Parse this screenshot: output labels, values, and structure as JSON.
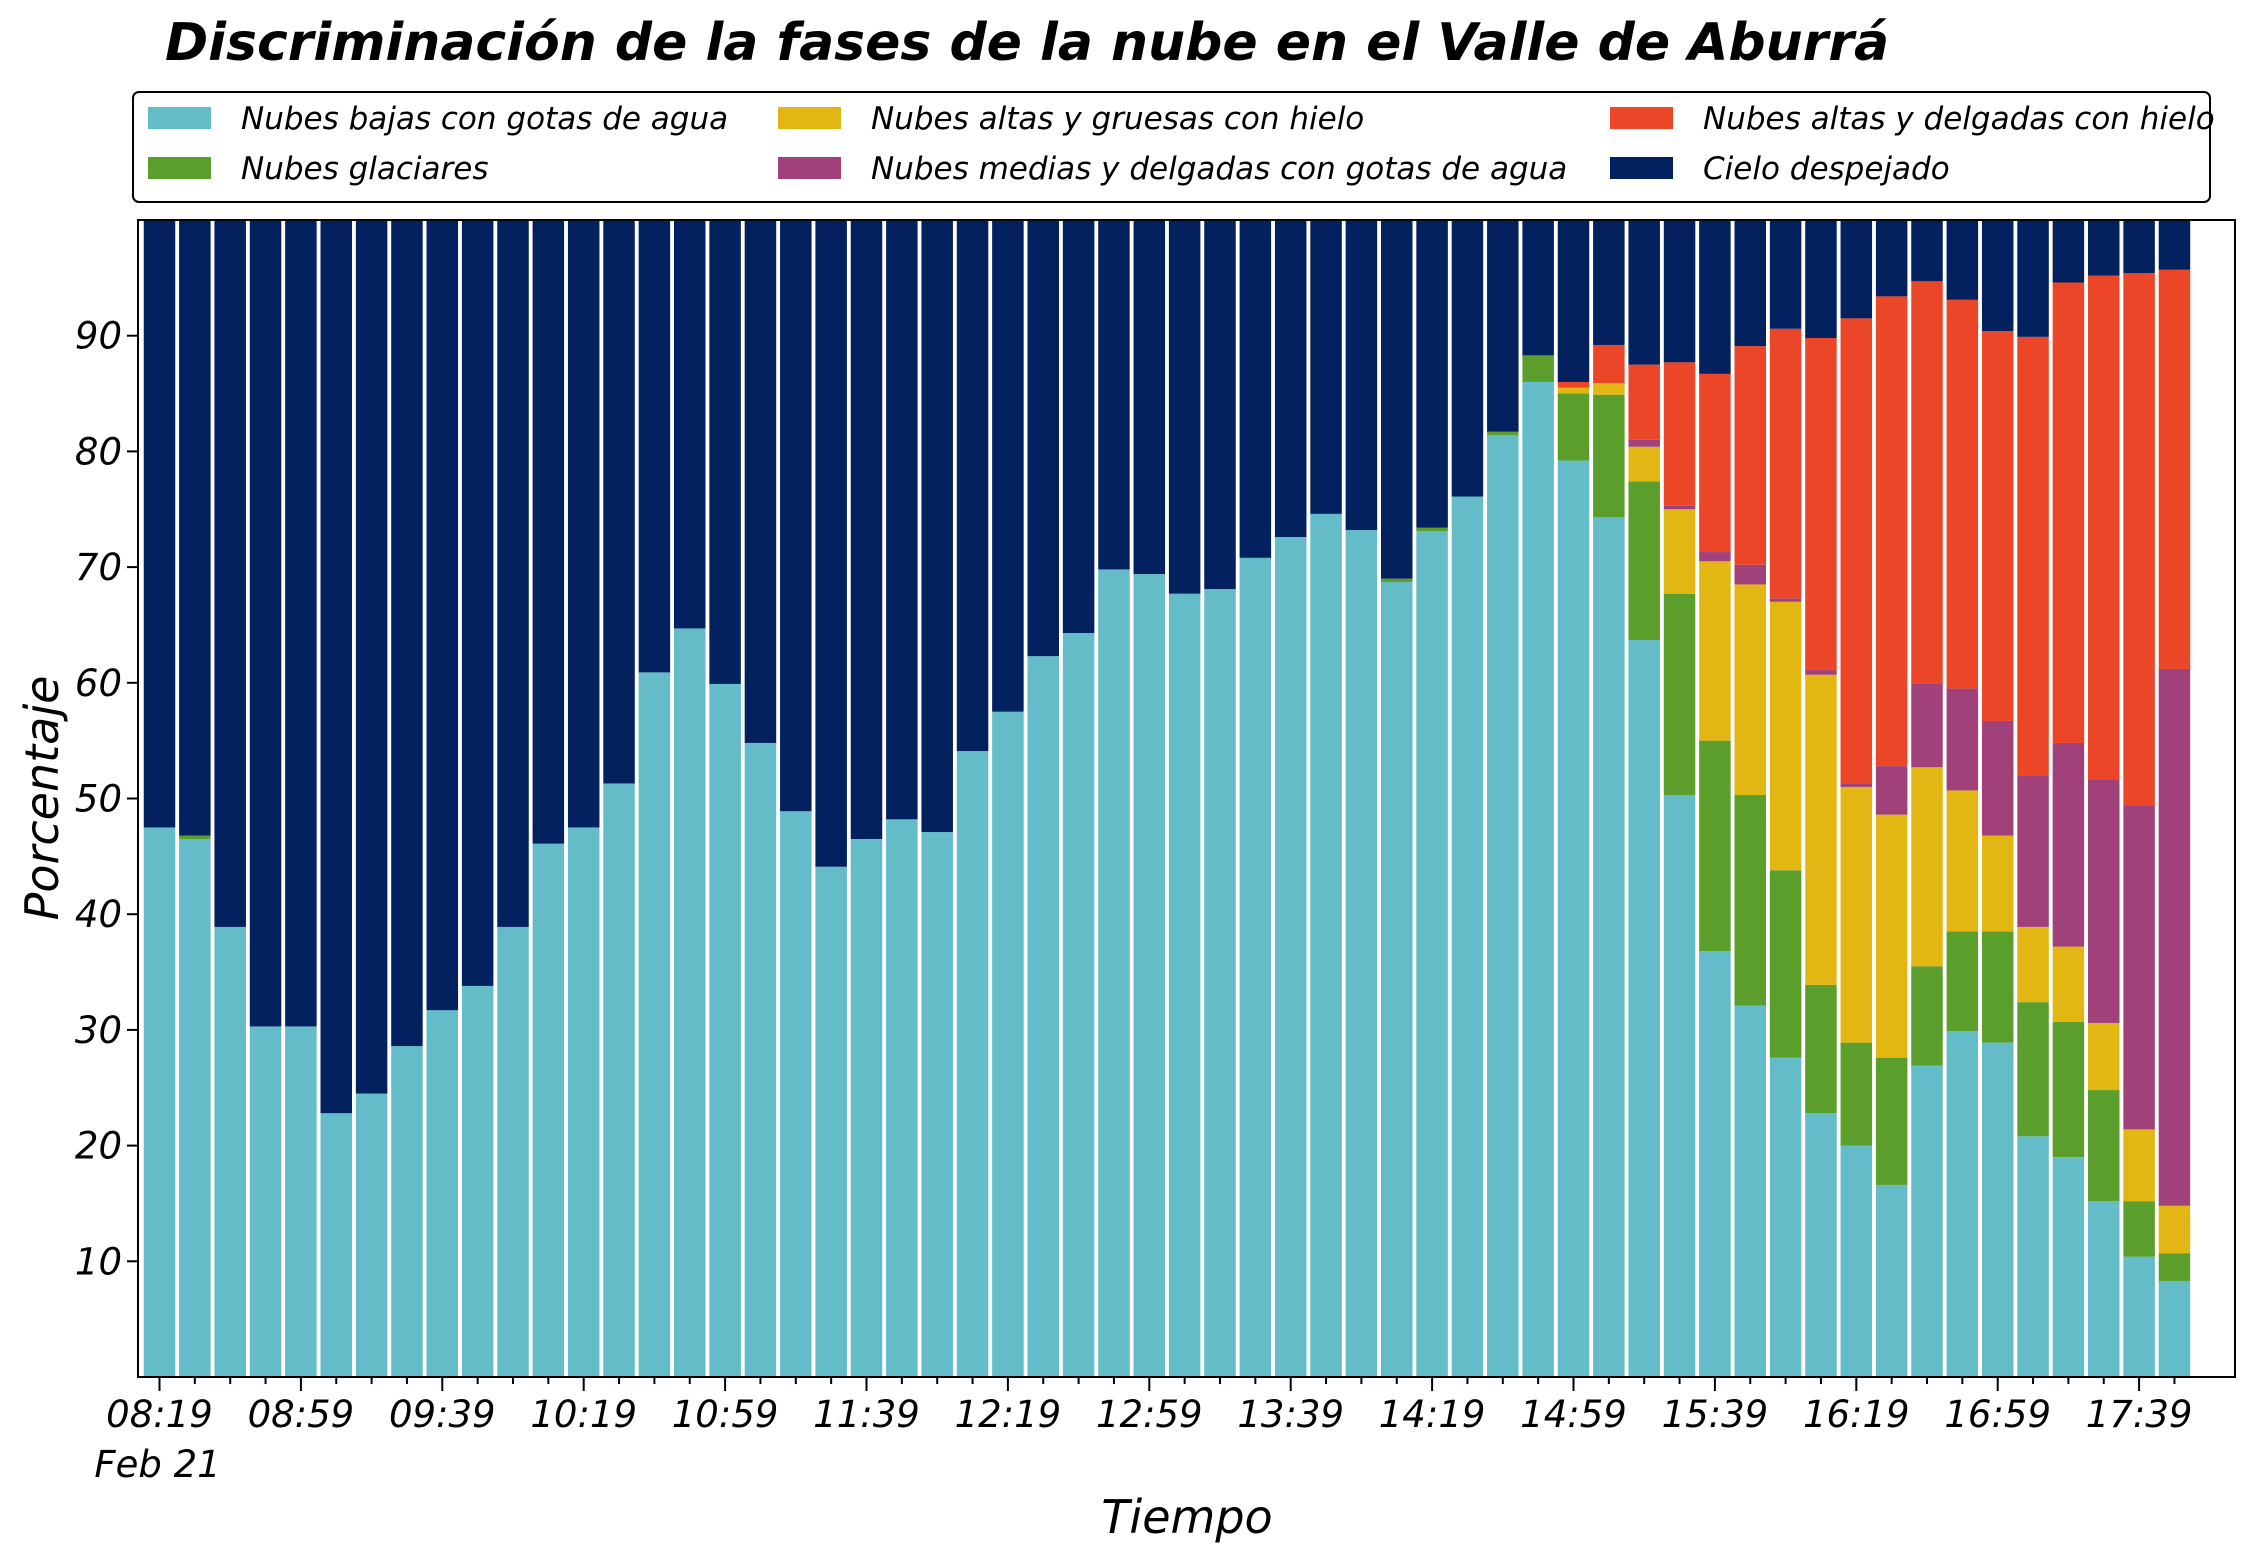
{
  "chart_data": {
    "type": "bar",
    "stacked": true,
    "title": "Discriminación de la fases de la nube en el Valle de Aburrá",
    "xlabel": "Tiempo",
    "ylabel": "Porcentaje",
    "ylim": [
      0,
      100
    ],
    "yticks": [
      10,
      20,
      30,
      40,
      50,
      60,
      70,
      80,
      90
    ],
    "xtick_labels": [
      "08:19",
      "08:59",
      "09:39",
      "10:19",
      "10:59",
      "11:39",
      "12:19",
      "12:59",
      "13:39",
      "14:19",
      "14:59",
      "15:39",
      "16:19",
      "16:59",
      "17:39"
    ],
    "xtick_date_label": "Feb 21",
    "bar_interval_minutes": 10,
    "categories": [
      "08:19",
      "08:29",
      "08:39",
      "08:49",
      "08:59",
      "09:09",
      "09:19",
      "09:29",
      "09:39",
      "09:49",
      "09:59",
      "10:09",
      "10:19",
      "10:29",
      "10:39",
      "10:49",
      "10:59",
      "11:09",
      "11:19",
      "11:29",
      "11:39",
      "11:49",
      "11:59",
      "12:09",
      "12:19",
      "12:29",
      "12:39",
      "12:49",
      "12:59",
      "13:09",
      "13:19",
      "13:29",
      "13:39",
      "13:49",
      "13:59",
      "14:09",
      "14:19",
      "14:29",
      "14:39",
      "14:49",
      "14:59",
      "15:09",
      "15:19",
      "15:29",
      "15:39",
      "15:49",
      "15:59",
      "16:09",
      "16:19",
      "16:29",
      "16:39",
      "16:49",
      "16:59",
      "17:09",
      "17:19",
      "17:29",
      "17:39",
      "17:49"
    ],
    "legend_placement": "top",
    "grid": false,
    "series": [
      {
        "name": "Nubes bajas con gotas de agua",
        "color": "#63BCC8",
        "values": [
          47.5,
          46.5,
          38.9,
          30.3,
          30.3,
          22.8,
          24.5,
          28.6,
          31.7,
          33.8,
          38.9,
          46.1,
          47.5,
          51.3,
          60.9,
          64.7,
          59.9,
          54.8,
          48.9,
          44.1,
          46.5,
          48.2,
          47.1,
          54.1,
          57.5,
          62.3,
          64.3,
          69.8,
          69.4,
          67.7,
          68.1,
          70.8,
          72.6,
          74.6,
          73.2,
          68.7,
          73.1,
          76.1,
          81.4,
          86.0,
          79.2,
          74.3,
          63.7,
          50.3,
          36.8,
          32.1,
          27.6,
          22.8,
          20.0,
          16.6,
          26.9,
          29.9,
          28.9,
          20.8,
          19.0,
          15.2,
          10.4,
          8.3
        ]
      },
      {
        "name": "Nubes glaciares",
        "color": "#5B9E2B",
        "values": [
          0,
          0.3,
          0,
          0,
          0,
          0,
          0,
          0,
          0,
          0,
          0,
          0,
          0,
          0,
          0,
          0,
          0,
          0,
          0,
          0,
          0,
          0,
          0,
          0,
          0,
          0,
          0,
          0,
          0,
          0,
          0,
          0,
          0,
          0,
          0,
          0.3,
          0.3,
          0,
          0.3,
          2.3,
          5.8,
          10.6,
          13.7,
          17.4,
          18.2,
          18.2,
          16.2,
          11.1,
          8.9,
          11.0,
          8.6,
          8.6,
          9.6,
          11.6,
          11.7,
          9.6,
          4.8,
          2.4
        ]
      },
      {
        "name": "Nubes altas y gruesas con hielo",
        "color": "#E3B713",
        "values": [
          0,
          0,
          0,
          0,
          0,
          0,
          0,
          0,
          0,
          0,
          0,
          0,
          0,
          0,
          0,
          0,
          0,
          0,
          0,
          0,
          0,
          0,
          0,
          0,
          0,
          0,
          0,
          0,
          0,
          0,
          0,
          0,
          0,
          0,
          0,
          0,
          0,
          0,
          0,
          0,
          0.5,
          1.0,
          3.0,
          7.3,
          15.5,
          18.2,
          23.2,
          26.8,
          22.1,
          21.0,
          17.2,
          12.2,
          8.3,
          6.5,
          6.5,
          5.8,
          6.2,
          4.1
        ]
      },
      {
        "name": "Nubes medias y delgadas con gotas de agua",
        "color": "#A04279",
        "values": [
          0,
          0,
          0,
          0,
          0,
          0,
          0,
          0,
          0,
          0,
          0,
          0,
          0,
          0,
          0,
          0,
          0,
          0,
          0,
          0,
          0,
          0,
          0,
          0,
          0,
          0,
          0,
          0,
          0,
          0,
          0,
          0,
          0,
          0,
          0,
          0,
          0,
          0,
          0,
          0,
          0,
          0,
          0.6,
          0.3,
          0.8,
          1.7,
          0.3,
          0.4,
          0.3,
          4.2,
          7.2,
          8.8,
          9.9,
          13.1,
          17.6,
          21.0,
          28.0,
          46.4
        ]
      },
      {
        "name": "Nubes altas y delgadas con hielo",
        "color": "#EB4628",
        "values": [
          0,
          0,
          0,
          0,
          0,
          0,
          0,
          0,
          0,
          0,
          0,
          0,
          0,
          0,
          0,
          0,
          0,
          0,
          0,
          0,
          0,
          0,
          0,
          0,
          0,
          0,
          0,
          0,
          0,
          0,
          0,
          0,
          0,
          0,
          0,
          0,
          0,
          0,
          0,
          0,
          0.5,
          3.3,
          6.5,
          12.4,
          15.4,
          18.9,
          23.3,
          28.7,
          40.2,
          40.6,
          34.8,
          33.6,
          33.7,
          37.9,
          39.8,
          43.6,
          46.0,
          34.5
        ]
      },
      {
        "name": "Cielo despejado",
        "color": "#03215E",
        "values": [
          52.5,
          53.2,
          61.1,
          69.7,
          69.7,
          77.2,
          75.5,
          71.4,
          68.3,
          66.2,
          61.1,
          53.9,
          52.5,
          48.7,
          39.1,
          35.3,
          40.1,
          45.2,
          51.1,
          55.9,
          53.5,
          51.8,
          52.9,
          45.9,
          42.5,
          37.7,
          35.7,
          30.2,
          30.6,
          32.3,
          31.9,
          29.2,
          27.4,
          25.4,
          26.8,
          31.0,
          26.6,
          23.9,
          18.3,
          11.7,
          14.0,
          10.8,
          12.5,
          12.3,
          13.3,
          10.9,
          9.4,
          10.2,
          8.5,
          6.6,
          5.3,
          6.9,
          9.6,
          10.1,
          5.4,
          4.8,
          4.6,
          4.3
        ]
      }
    ]
  }
}
